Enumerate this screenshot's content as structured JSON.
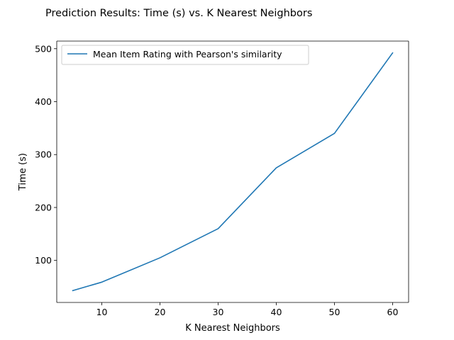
{
  "chart_data": {
    "type": "line",
    "title": "Prediction Results: Time (s) vs. K Nearest Neighbors",
    "xlabel": "K Nearest Neighbors",
    "ylabel": "Time (s)",
    "xlim": [
      2.25,
      62.75
    ],
    "ylim": [
      20.6,
      514.4
    ],
    "xticks": [
      10,
      20,
      30,
      40,
      50,
      60
    ],
    "yticks": [
      100,
      200,
      300,
      400,
      500
    ],
    "xtick_labels": [
      "10",
      "20",
      "30",
      "40",
      "50",
      "60"
    ],
    "ytick_labels": [
      "100",
      "200",
      "300",
      "400",
      "500"
    ],
    "grid": false,
    "legend_position": "upper-left",
    "series": [
      {
        "name": "Mean Item Rating with Pearson's similarity",
        "color": "#1f77b4",
        "x": [
          5,
          10,
          20,
          30,
          40,
          50,
          60
        ],
        "y": [
          43,
          59,
          105,
          160,
          275,
          340,
          492
        ]
      }
    ]
  }
}
